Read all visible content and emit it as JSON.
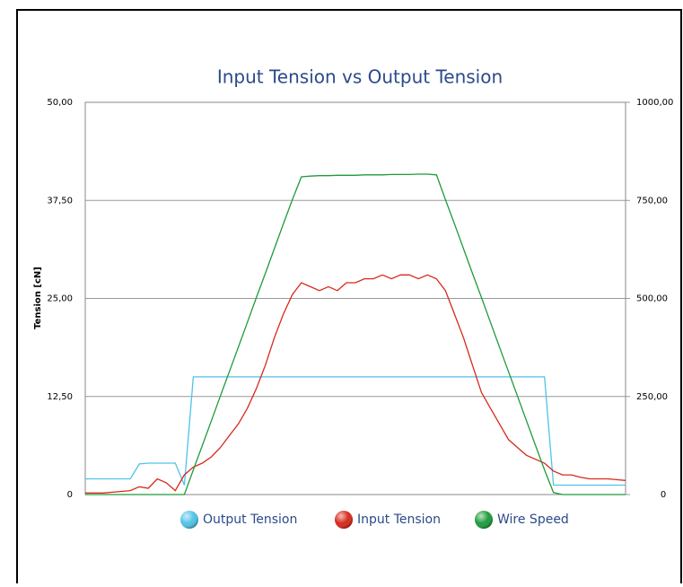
{
  "chart_data": {
    "type": "line",
    "title": "Input Tension vs Output Tension",
    "y_label": "Tension [cN]",
    "ylim": [
      0,
      50
    ],
    "yticks": [
      0,
      {
        "value": 12.5,
        "label": "12,50"
      },
      {
        "value": 25,
        "label": "25,00"
      },
      {
        "value": 37.5,
        "label": "37,50"
      },
      {
        "value": 50,
        "label": "50,00"
      }
    ],
    "y2lim": [
      0,
      1000
    ],
    "y2ticks": [
      0,
      {
        "value": 250,
        "label": "250,00"
      },
      {
        "value": 500,
        "label": "500,00"
      },
      {
        "value": 750,
        "label": "750,00"
      },
      {
        "value": 1000,
        "label": "1000,00"
      }
    ],
    "grid": true,
    "legend": "bottom",
    "series": [
      {
        "name": "Output Tension",
        "color": "#4fc3e8",
        "values": [
          2,
          2,
          2,
          2,
          2,
          2,
          3.9,
          4,
          4,
          4,
          4,
          1.2,
          15,
          15,
          15,
          15,
          15,
          15,
          15,
          15,
          15,
          15,
          15,
          15,
          15,
          15,
          15,
          15,
          15,
          15,
          15,
          15,
          15,
          15,
          15,
          15,
          15,
          15,
          15,
          15,
          15,
          15,
          15,
          15,
          15,
          15,
          15,
          15,
          15,
          15,
          15,
          15,
          1.2,
          1.2,
          1.2,
          1.2,
          1.2,
          1.2,
          1.2,
          1.2,
          1.2
        ]
      },
      {
        "name": "Input Tension",
        "color": "#d8281a",
        "values": [
          0.2,
          0.2,
          0.2,
          0.3,
          0.4,
          0.5,
          1,
          0.8,
          2,
          1.5,
          0.5,
          2.5,
          3.5,
          4,
          4.8,
          6,
          7.5,
          9,
          11,
          13.5,
          16.5,
          20,
          23,
          25.5,
          27,
          26.5,
          26,
          26.5,
          26,
          27,
          27,
          27.5,
          27.5,
          28,
          27.5,
          28,
          28,
          27.5,
          28,
          27.5,
          26,
          23,
          20,
          16.5,
          13,
          11,
          9,
          7,
          6,
          5,
          4.5,
          4,
          3,
          2.5,
          2.5,
          2.2,
          2,
          2,
          2,
          1.9,
          1.8
        ]
      },
      {
        "name": "Wire Speed",
        "color": "#1e9b3c",
        "axis": "y2",
        "values": [
          0,
          0,
          0,
          0,
          0,
          0,
          0,
          0,
          0,
          0,
          0,
          0,
          63,
          125,
          188,
          251,
          313,
          376,
          439,
          502,
          564,
          627,
          690,
          752,
          810,
          812,
          813,
          813,
          814,
          814,
          814,
          815,
          815,
          815,
          816,
          816,
          816,
          817,
          817,
          815,
          752,
          690,
          627,
          564,
          502,
          439,
          376,
          313,
          251,
          188,
          125,
          63,
          5,
          0,
          0,
          0,
          0,
          0,
          0,
          0,
          0
        ]
      }
    ]
  }
}
